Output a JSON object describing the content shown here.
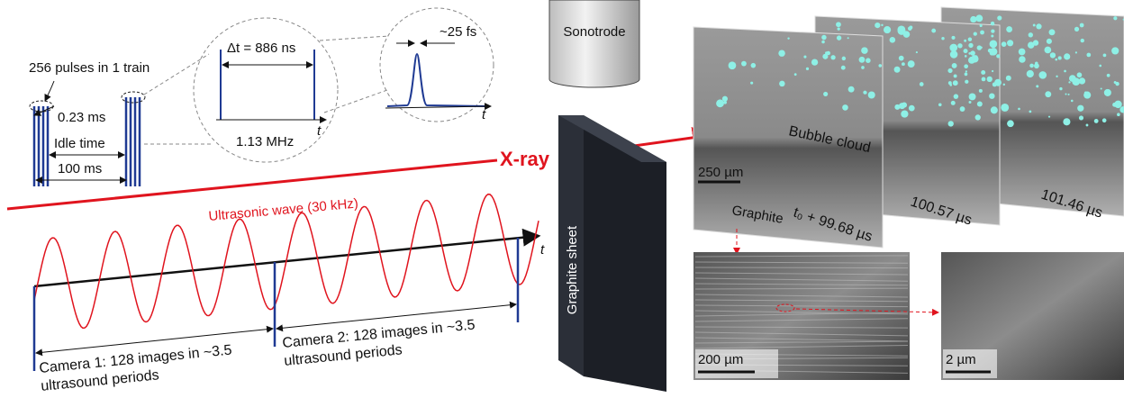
{
  "pulse_train": {
    "title": "256 pulses in 1 train",
    "pulse_width": "0.23 ms",
    "idle": "Idle time",
    "period": "100 ms"
  },
  "zoom1": {
    "spacing": "Δt = 886 ns",
    "frequency": "1.13 MHz"
  },
  "zoom2": {
    "width": "~25 fs"
  },
  "time_axis": "t",
  "sonotrode": "Sonotrode",
  "xray": "X-ray",
  "ultrasound": {
    "label": "Ultrasonic wave (30 kHz)",
    "camera1": [
      "Camera 1: 128 images in ~3.5",
      "ultrasound periods"
    ],
    "camera2": [
      "Camera 2: 128 images in ~3.5",
      "ultrasound periods"
    ]
  },
  "graphite_sheet": "Graphite sheet",
  "xray_images": {
    "bubble": "Bubble cloud",
    "scale": "250 µm",
    "graphite": "Graphite",
    "times": [
      "t₀ + 99.68 µs",
      "100.57 µs",
      "101.46 µs"
    ]
  },
  "sem": {
    "scale1": "200 µm",
    "scale2": "2 µm"
  }
}
